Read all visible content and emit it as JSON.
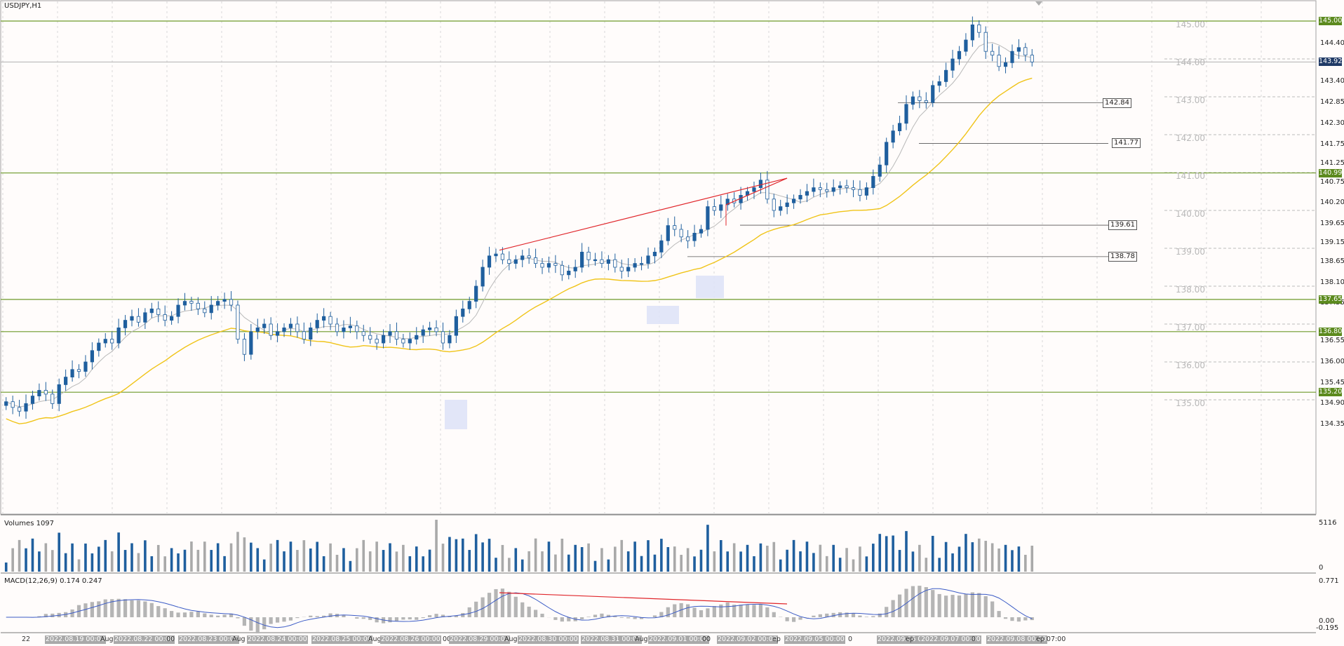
{
  "window": {
    "title": "USDJPY,H1"
  },
  "colors": {
    "background": "#fffcfb",
    "bull": "#1f5f9e",
    "bear": "#1f5f9e",
    "ma_fast": "#b9b9b9",
    "ma_slow": "#f0c419",
    "support_line": "#6e9a2a",
    "trend_line": "#e0262b",
    "volume_up": "#1f5f9e",
    "volume_down": "#a9a9a9",
    "macd_hist": "#b5b5b5",
    "macd_signal": "#3b5bc6"
  },
  "price_axis": {
    "ticks": [
      "144.40",
      "143.40",
      "142.85",
      "142.30",
      "141.75",
      "141.25",
      "140.75",
      "140.20",
      "139.65",
      "139.15",
      "138.65",
      "138.10",
      "137.55",
      "136.55",
      "136.00",
      "135.45",
      "134.90",
      "134.35"
    ],
    "big_labels": [
      "145.00",
      "144.00",
      "143.00",
      "142.00",
      "141.00",
      "140.00",
      "139.00",
      "138.00",
      "137.00",
      "136.00",
      "135.00"
    ],
    "current_price": "143.92",
    "levels": [
      "145.00",
      "140.99",
      "137.65",
      "136.80",
      "135.20"
    ],
    "box_labels": [
      "142.84",
      "141.77",
      "139.61",
      "138.78"
    ]
  },
  "volumes": {
    "label": "Volumes 1097",
    "max_label": "5116",
    "min_label": "0"
  },
  "macd": {
    "label": "MACD(12,26,9) 0.174 0.247",
    "max_label": "0.771",
    "zero_label": "0.00",
    "min_label": "-0.195"
  },
  "time_axis": {
    "labels": [
      "22",
      "2022.08.19 00:00",
      "Aug",
      "2022.08.22 00:00",
      "00",
      "2022.08.23 00:00",
      "Aug",
      "2022.08.24 00:00",
      "2022.08.25 00:00",
      "Aug",
      "2022.08.26 00:00",
      "00",
      "2022.08.29 00:00",
      "Aug",
      "2022.08.30 00:00",
      "2022.08.31 00:00",
      "Aug",
      "2022.09.01 00:00",
      "00",
      "2022.09.02 00:00",
      "ep",
      "2022.09.05 00:00",
      "0",
      "2022.09.06 00:00",
      "ep",
      "2022.09.07 00:00",
      "0",
      "2022.09.08 00:00",
      "ep 07:00"
    ]
  },
  "chart_data": {
    "type": "candlestick",
    "symbol": "USDJPY",
    "timeframe": "H1",
    "ylim": [
      134.35,
      145.0
    ],
    "closes": [
      134.95,
      134.8,
      134.7,
      134.9,
      135.1,
      135.25,
      135.15,
      134.9,
      135.4,
      135.6,
      135.8,
      135.75,
      136.0,
      136.3,
      136.5,
      136.6,
      136.5,
      136.9,
      137.1,
      137.2,
      137.05,
      137.3,
      137.4,
      137.25,
      137.1,
      137.2,
      137.5,
      137.6,
      137.55,
      137.4,
      137.3,
      137.5,
      137.6,
      137.65,
      137.5,
      136.6,
      136.2,
      136.8,
      136.9,
      137.0,
      136.7,
      136.8,
      136.9,
      137.0,
      136.8,
      136.6,
      136.9,
      137.1,
      137.2,
      137.0,
      136.8,
      136.9,
      136.95,
      136.8,
      136.7,
      136.6,
      136.5,
      136.7,
      136.8,
      136.6,
      136.5,
      136.6,
      136.7,
      136.85,
      136.9,
      136.8,
      136.5,
      136.7,
      137.2,
      137.4,
      137.6,
      138.0,
      138.5,
      138.8,
      138.85,
      138.7,
      138.6,
      138.7,
      138.8,
      138.75,
      138.6,
      138.5,
      138.6,
      138.55,
      138.3,
      138.4,
      138.5,
      138.9,
      138.7,
      138.7,
      138.6,
      138.7,
      138.5,
      138.4,
      138.5,
      138.6,
      138.6,
      138.8,
      138.9,
      139.2,
      139.6,
      139.5,
      139.3,
      139.2,
      139.4,
      139.5,
      140.1,
      140.0,
      140.15,
      140.3,
      140.2,
      140.4,
      140.5,
      140.6,
      140.8,
      140.3,
      140.0,
      140.1,
      140.2,
      140.3,
      140.4,
      140.5,
      140.6,
      140.55,
      140.5,
      140.6,
      140.65,
      140.6,
      140.55,
      140.4,
      140.6,
      140.9,
      141.2,
      141.8,
      142.1,
      142.3,
      142.8,
      143.0,
      142.9,
      142.85,
      143.3,
      143.4,
      143.7,
      144.0,
      144.2,
      144.5,
      144.9,
      144.7,
      144.2,
      144.1,
      143.8,
      143.9,
      144.2,
      144.3,
      144.1,
      143.92
    ],
    "levels": [
      145.0,
      140.99,
      137.65,
      136.8,
      135.2
    ],
    "volume_max": 5116,
    "macd_range": [
      -0.195,
      0.771
    ]
  }
}
